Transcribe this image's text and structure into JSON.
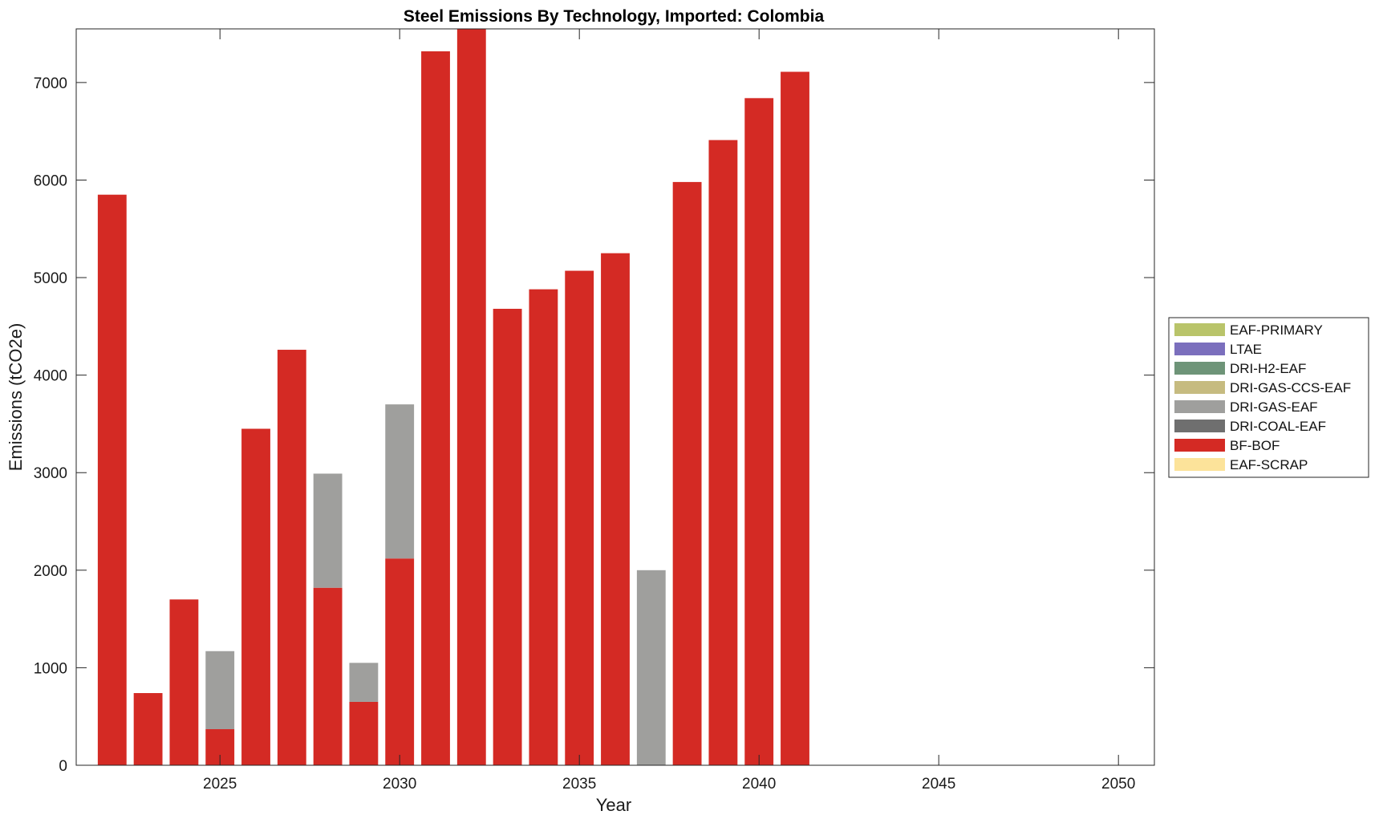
{
  "chart_data": {
    "type": "bar",
    "stacked": true,
    "title": "Steel Emissions By Technology, Imported: Colombia",
    "xlabel": "Year",
    "ylabel": "Emissions (tCO2e)",
    "xlim": [
      2021,
      2051
    ],
    "ylim": [
      0,
      7550
    ],
    "xticks": [
      "2025",
      "2030",
      "2035",
      "2040",
      "2045",
      "2050"
    ],
    "yticks": [
      "0",
      "1000",
      "2000",
      "3000",
      "4000",
      "5000",
      "6000",
      "7000"
    ],
    "grid": false,
    "legend_position": "right",
    "x": [
      2022,
      2023,
      2024,
      2025,
      2026,
      2027,
      2028,
      2029,
      2030,
      2031,
      2032,
      2033,
      2034,
      2035,
      2036,
      2037,
      2038,
      2039,
      2040,
      2041
    ],
    "series": [
      {
        "name": "EAF-PRIMARY",
        "color": "#b9c46a",
        "values": [
          0,
          0,
          0,
          0,
          0,
          0,
          0,
          0,
          0,
          0,
          0,
          0,
          0,
          0,
          0,
          0,
          0,
          0,
          0,
          0
        ]
      },
      {
        "name": "LTAE",
        "color": "#7b6fbd",
        "values": [
          0,
          0,
          0,
          0,
          0,
          0,
          0,
          0,
          0,
          0,
          0,
          0,
          0,
          0,
          0,
          0,
          0,
          0,
          0,
          0
        ]
      },
      {
        "name": "DRI-H2-EAF",
        "color": "#6e9478",
        "values": [
          0,
          0,
          0,
          0,
          0,
          0,
          0,
          0,
          0,
          0,
          0,
          0,
          0,
          0,
          0,
          0,
          0,
          0,
          0,
          0
        ]
      },
      {
        "name": "DRI-GAS-CCS-EAF",
        "color": "#c6bb80",
        "values": [
          0,
          0,
          0,
          0,
          0,
          0,
          0,
          0,
          0,
          0,
          0,
          0,
          0,
          0,
          0,
          0,
          0,
          0,
          0,
          0
        ]
      },
      {
        "name": "DRI-GAS-EAF",
        "color": "#9f9f9d",
        "values": [
          0,
          0,
          0,
          800,
          0,
          0,
          1170,
          400,
          1580,
          0,
          0,
          0,
          0,
          0,
          0,
          2000,
          0,
          0,
          0,
          0
        ]
      },
      {
        "name": "DRI-COAL-EAF",
        "color": "#6f6f6f",
        "values": [
          0,
          0,
          0,
          0,
          0,
          0,
          0,
          0,
          0,
          0,
          0,
          0,
          0,
          0,
          0,
          0,
          0,
          0,
          0,
          0
        ]
      },
      {
        "name": "BF-BOF",
        "color": "#d42a24",
        "values": [
          5850,
          740,
          1700,
          370,
          3450,
          4260,
          1820,
          650,
          2120,
          7320,
          7550,
          4680,
          4880,
          5070,
          5250,
          0,
          5980,
          6410,
          6840,
          7110
        ]
      },
      {
        "name": "EAF-SCRAP",
        "color": "#fce39a",
        "values": [
          0,
          0,
          0,
          0,
          0,
          0,
          0,
          0,
          0,
          0,
          0,
          0,
          0,
          0,
          0,
          0,
          0,
          0,
          0,
          0
        ]
      }
    ],
    "stack_order": [
      "BF-BOF",
      "DRI-GAS-EAF"
    ]
  }
}
